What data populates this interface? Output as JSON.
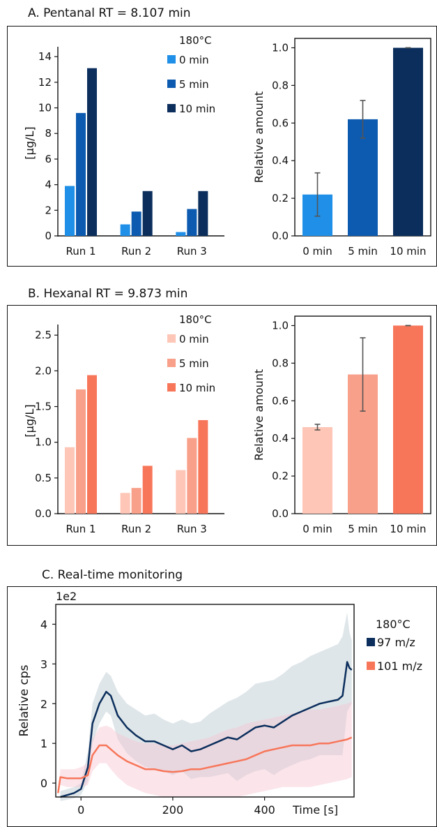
{
  "panels": {
    "a": {
      "title": "A. Pentanal RT = 8.107 min"
    },
    "b": {
      "title": "B. Hexanal RT = 9.873 min"
    },
    "c": {
      "title": "C. Real-time monitoring"
    }
  },
  "chart_data": [
    {
      "id": "a-left",
      "type": "bar",
      "categories": [
        "Run 1",
        "Run 2",
        "Run 3"
      ],
      "ylabel": "[µg/L]",
      "ylim": [
        0,
        14.5
      ],
      "yticks": [
        "0",
        "2",
        "4",
        "6",
        "8",
        "10",
        "12",
        "14"
      ],
      "legend_title": "180°C",
      "series": [
        {
          "name": "0 min",
          "color": "#1f8fe8",
          "values": [
            3.9,
            0.9,
            0.3
          ]
        },
        {
          "name": "5 min",
          "color": "#0d5bb0",
          "values": [
            9.6,
            1.9,
            2.1
          ]
        },
        {
          "name": "10 min",
          "color": "#0b2e5c",
          "values": [
            13.1,
            3.5,
            3.5
          ]
        }
      ]
    },
    {
      "id": "a-right",
      "type": "bar",
      "categories": [
        "0 min",
        "5 min",
        "10 min"
      ],
      "ylabel": "Relative amount",
      "ylim": [
        0,
        1.05
      ],
      "yticks": [
        "0.0",
        "0.2",
        "0.4",
        "0.6",
        "0.8",
        "1.0"
      ],
      "values": [
        0.22,
        0.62,
        1.0
      ],
      "errors": [
        0.115,
        0.1,
        0.0
      ],
      "colors": [
        "#1f8fe8",
        "#0d5bb0",
        "#0b2e5c"
      ]
    },
    {
      "id": "b-left",
      "type": "bar",
      "categories": [
        "Run 1",
        "Run 2",
        "Run 3"
      ],
      "ylabel": "[µg/L]",
      "ylim": [
        0,
        2.6
      ],
      "yticks": [
        "0.0",
        "0.5",
        "1.0",
        "1.5",
        "2.0",
        "2.5"
      ],
      "legend_title": "180°C",
      "series": [
        {
          "name": "0 min",
          "color": "#fdc6b6",
          "values": [
            0.93,
            0.29,
            0.61
          ]
        },
        {
          "name": "5 min",
          "color": "#f8a08a",
          "values": [
            1.74,
            0.36,
            1.06
          ]
        },
        {
          "name": "10 min",
          "color": "#f7765a",
          "values": [
            1.94,
            0.67,
            1.31
          ]
        }
      ]
    },
    {
      "id": "b-right",
      "type": "bar",
      "categories": [
        "0 min",
        "5 min",
        "10 min"
      ],
      "ylabel": "Relative amount",
      "ylim": [
        0,
        1.05
      ],
      "yticks": [
        "0.0",
        "0.2",
        "0.4",
        "0.6",
        "0.8",
        "1.0"
      ],
      "values": [
        0.46,
        0.74,
        1.0
      ],
      "errors": [
        0.015,
        0.195,
        0.0
      ],
      "colors": [
        "#fdc6b6",
        "#f8a08a",
        "#f7765a"
      ]
    },
    {
      "id": "c",
      "type": "line",
      "xlabel": "Time [s]",
      "ylabel": "Relative cps",
      "offset_label": "1e2",
      "xlim": [
        -55,
        595
      ],
      "ylim": [
        -0.35,
        4.5
      ],
      "xticks": [
        "0",
        "200",
        "400"
      ],
      "yticks": [
        "0",
        "1",
        "2",
        "3",
        "4"
      ],
      "legend_title": "180°C",
      "series": [
        {
          "name": "97 m/z",
          "color": "#0b2e5c",
          "band_color": "#b8c7ce",
          "x": [
            -45,
            -30,
            -15,
            0,
            15,
            25,
            40,
            55,
            65,
            80,
            100,
            120,
            140,
            160,
            180,
            200,
            220,
            240,
            260,
            280,
            300,
            320,
            340,
            360,
            380,
            400,
            420,
            440,
            460,
            480,
            500,
            520,
            540,
            560,
            570,
            580,
            585,
            590
          ],
          "y": [
            -0.35,
            -0.3,
            -0.25,
            -0.15,
            0.4,
            1.5,
            2.0,
            2.3,
            2.2,
            1.7,
            1.4,
            1.2,
            1.05,
            1.05,
            0.95,
            0.85,
            0.95,
            0.8,
            0.85,
            0.95,
            1.05,
            1.15,
            1.1,
            1.25,
            1.4,
            1.45,
            1.4,
            1.55,
            1.7,
            1.8,
            1.9,
            2.0,
            2.05,
            2.1,
            2.2,
            3.05,
            2.9,
            2.85
          ],
          "upper": [
            -0.2,
            -0.15,
            -0.1,
            0.0,
            0.8,
            2.0,
            2.5,
            2.8,
            2.7,
            2.3,
            2.0,
            1.85,
            1.7,
            1.75,
            1.6,
            1.5,
            1.6,
            1.5,
            1.55,
            1.75,
            1.9,
            2.05,
            2.15,
            2.3,
            2.5,
            2.55,
            2.6,
            2.75,
            2.95,
            3.05,
            3.2,
            3.3,
            3.4,
            3.5,
            3.7,
            4.3,
            3.8,
            3.6
          ],
          "lower": [
            -0.45,
            -0.42,
            -0.38,
            -0.3,
            0.05,
            1.0,
            1.5,
            1.8,
            1.7,
            1.1,
            0.75,
            0.55,
            0.4,
            0.35,
            0.3,
            0.2,
            0.3,
            0.1,
            0.15,
            0.15,
            0.2,
            0.25,
            0.05,
            0.2,
            0.3,
            0.35,
            0.2,
            0.35,
            0.45,
            0.55,
            0.6,
            0.7,
            0.7,
            0.7,
            0.7,
            1.8,
            1.9,
            2.0
          ]
        },
        {
          "name": "101 m/z",
          "color": "#f7765a",
          "band_color": "#f7c6d2",
          "x": [
            -50,
            -45,
            -30,
            -15,
            0,
            15,
            25,
            40,
            55,
            65,
            80,
            100,
            120,
            140,
            160,
            180,
            200,
            220,
            240,
            260,
            280,
            300,
            320,
            340,
            360,
            380,
            400,
            420,
            440,
            460,
            480,
            500,
            520,
            540,
            560,
            580,
            590
          ],
          "y": [
            -0.25,
            0.15,
            0.12,
            0.12,
            0.12,
            0.2,
            0.7,
            0.95,
            0.95,
            0.85,
            0.7,
            0.55,
            0.45,
            0.35,
            0.35,
            0.3,
            0.28,
            0.3,
            0.35,
            0.35,
            0.4,
            0.45,
            0.5,
            0.55,
            0.6,
            0.7,
            0.8,
            0.85,
            0.9,
            0.95,
            0.95,
            0.95,
            1.0,
            1.0,
            1.05,
            1.1,
            1.15
          ],
          "upper": [
            -0.2,
            0.35,
            0.35,
            0.35,
            0.4,
            0.5,
            1.1,
            1.4,
            1.45,
            1.4,
            1.25,
            1.15,
            1.05,
            1.0,
            1.0,
            0.95,
            0.95,
            1.0,
            1.05,
            1.1,
            1.15,
            1.25,
            1.35,
            1.4,
            1.5,
            1.55,
            1.6,
            1.65,
            1.7,
            1.75,
            1.8,
            1.85,
            1.85,
            1.9,
            1.95,
            2.0,
            2.05
          ],
          "lower": [
            -0.3,
            -0.05,
            -0.1,
            -0.1,
            -0.1,
            -0.05,
            0.3,
            0.5,
            0.5,
            0.35,
            0.15,
            -0.05,
            -0.15,
            -0.25,
            -0.3,
            -0.35,
            -0.35,
            -0.35,
            -0.35,
            -0.35,
            -0.35,
            -0.35,
            -0.35,
            -0.35,
            -0.3,
            -0.25,
            -0.2,
            -0.15,
            -0.1,
            -0.1,
            -0.1,
            -0.1,
            -0.05,
            0.0,
            0.05,
            0.1,
            0.15
          ]
        }
      ]
    }
  ]
}
